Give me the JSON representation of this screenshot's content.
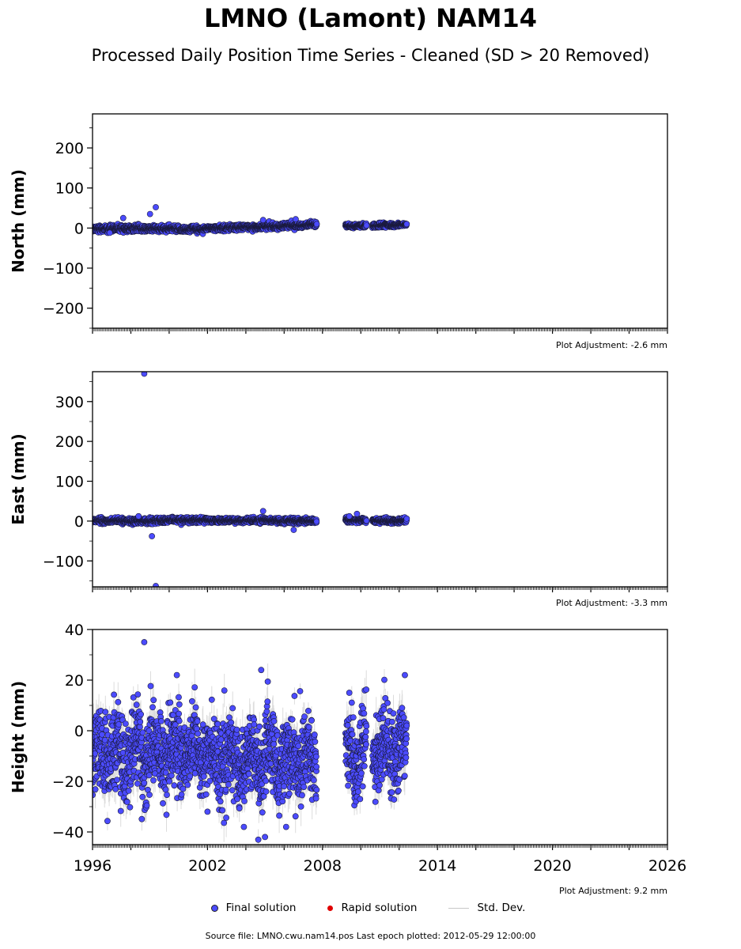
{
  "title": "LMNO (Lamont) NAM14",
  "subtitle": "Processed Daily Position Time Series - Cleaned (SD > 20 Removed)",
  "legend": {
    "final": "Final solution",
    "rapid": "Rapid solution",
    "std": "Std. Dev."
  },
  "colors": {
    "final": "#4b4bff",
    "rapid": "#e00000",
    "std": "#9a9a9a"
  },
  "footer": "Source file: LMNO.cwu.nam14.pos  Last epoch plotted: 2012-05-29 12:00:00",
  "chart_data": [
    {
      "type": "scatter",
      "ylabel": "North (mm)",
      "ylim": [
        -250,
        285
      ],
      "yticks": [
        -200,
        -100,
        0,
        100,
        200
      ],
      "xlim": [
        1996,
        2026
      ],
      "adjustment": "Plot Adjustment: -2.6 mm",
      "segments": [
        {
          "x0": 1996.0,
          "x1": 1998.0,
          "noise": 4,
          "trend0": -2,
          "trend1": -1
        },
        {
          "x0": 1998.0,
          "x1": 2002.0,
          "noise": 4,
          "trend0": -1,
          "trend1": -3
        },
        {
          "x0": 2002.0,
          "x1": 2005.0,
          "noise": 3.5,
          "trend0": 0,
          "trend1": 3
        },
        {
          "x0": 2005.0,
          "x1": 2007.7,
          "noise": 3.5,
          "trend0": 4,
          "trend1": 8
        },
        {
          "x0": 2009.2,
          "x1": 2010.3,
          "noise": 2.5,
          "trend0": 5,
          "trend1": 6
        },
        {
          "x0": 2010.6,
          "x1": 2012.4,
          "noise": 2.5,
          "trend0": 6,
          "trend1": 8
        }
      ],
      "outliers": [
        [
          1997.6,
          25
        ],
        [
          1999.0,
          35
        ],
        [
          1999.3,
          52
        ],
        [
          1996.9,
          -12
        ],
        [
          2004.9,
          20
        ],
        [
          2006.6,
          22
        ],
        [
          2007.7,
          10
        ]
      ]
    },
    {
      "type": "scatter",
      "ylabel": "East (mm)",
      "ylim": [
        -165,
        375
      ],
      "yticks": [
        -100,
        0,
        100,
        200,
        300
      ],
      "xlim": [
        1996,
        2026
      ],
      "adjustment": "Plot Adjustment: -3.3 mm",
      "segments": [
        {
          "x0": 1996.0,
          "x1": 1998.0,
          "noise": 3,
          "trend0": 1,
          "trend1": 0
        },
        {
          "x0": 1998.0,
          "x1": 2002.0,
          "noise": 3.5,
          "trend0": 0,
          "trend1": 3
        },
        {
          "x0": 2002.0,
          "x1": 2005.0,
          "noise": 3,
          "trend0": 1,
          "trend1": 2
        },
        {
          "x0": 2005.0,
          "x1": 2007.7,
          "noise": 3,
          "trend0": 1,
          "trend1": 0
        },
        {
          "x0": 2009.2,
          "x1": 2010.3,
          "noise": 3,
          "trend0": 3,
          "trend1": 2
        },
        {
          "x0": 2010.6,
          "x1": 2012.4,
          "noise": 3,
          "trend0": 1,
          "trend1": 0
        }
      ],
      "outliers": [
        [
          1998.7,
          370
        ],
        [
          1998.4,
          12
        ],
        [
          1999.1,
          -38
        ],
        [
          1999.3,
          -163
        ],
        [
          2004.9,
          25
        ],
        [
          2006.5,
          -22
        ],
        [
          2009.4,
          12
        ],
        [
          2009.8,
          18
        ]
      ]
    },
    {
      "type": "scatter",
      "ylabel": "Height (mm)",
      "ylim": [
        -45,
        40
      ],
      "yticks": [
        -40,
        -20,
        0,
        20,
        40
      ],
      "xlim": [
        1996,
        2026
      ],
      "xticks": [
        1996,
        2002,
        2008,
        2014,
        2020,
        2026
      ],
      "adjustment": "Plot Adjustment: 9.2 mm",
      "segments": [
        {
          "x0": 1996.0,
          "x1": 1998.0,
          "noise": 8,
          "trend0": -10,
          "trend1": -9
        },
        {
          "x0": 1998.0,
          "x1": 2002.0,
          "noise": 8,
          "trend0": -9,
          "trend1": -7
        },
        {
          "x0": 2002.0,
          "x1": 2005.0,
          "noise": 8,
          "trend0": -11,
          "trend1": -12
        },
        {
          "x0": 2005.0,
          "x1": 2007.7,
          "noise": 8,
          "trend0": -11,
          "trend1": -10
        },
        {
          "x0": 2009.2,
          "x1": 2010.3,
          "noise": 7.5,
          "trend0": -9,
          "trend1": -9
        },
        {
          "x0": 2010.6,
          "x1": 2012.4,
          "noise": 7.5,
          "trend0": -6,
          "trend1": -7
        }
      ],
      "outliers": [
        [
          1998.7,
          35
        ],
        [
          2000.4,
          22
        ],
        [
          2004.8,
          24
        ],
        [
          2012.3,
          22
        ],
        [
          2003.9,
          -38
        ],
        [
          2005.0,
          -42
        ],
        [
          2006.1,
          -38
        ],
        [
          2009.4,
          15
        ],
        [
          2002.0,
          -32
        ]
      ]
    }
  ]
}
